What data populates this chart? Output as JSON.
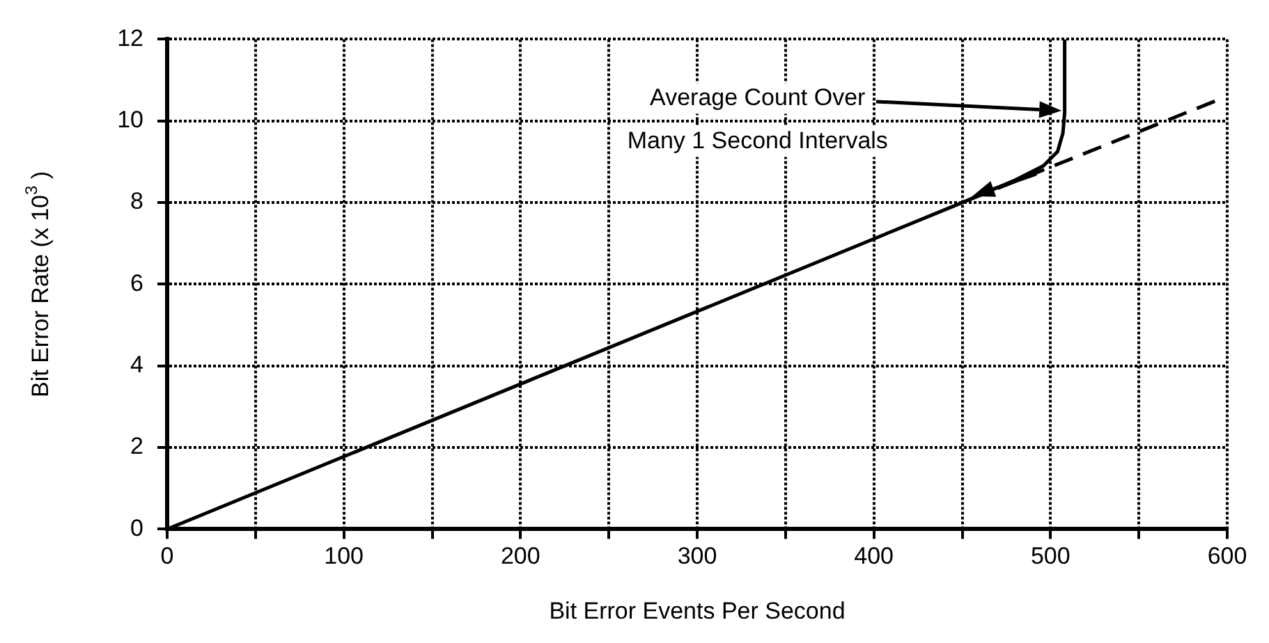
{
  "chart_data": {
    "type": "line",
    "xlabel": "Bit Error Events Per Second",
    "ylabel": "Bit Error Rate (x 10$^{3}$ )",
    "xlim": [
      0,
      600
    ],
    "ylim": [
      0,
      12
    ],
    "xticks": [
      0,
      {
        "value": 50,
        "label": null
      },
      100,
      {
        "value": 150,
        "label": null
      },
      200,
      {
        "value": 250,
        "label": null
      },
      300,
      {
        "value": 350,
        "label": null
      },
      400,
      {
        "value": 450,
        "label": null
      },
      500,
      {
        "value": 550,
        "label": null
      },
      600
    ],
    "yticks": [
      0,
      2,
      4,
      6,
      8,
      10,
      12
    ],
    "grid": true,
    "legend": false,
    "marker": "none",
    "series": [
      {
        "color": "#000000",
        "line_style": "solid",
        "x": [
          0,
          450,
          480,
          496,
          504,
          507,
          508,
          508
        ],
        "values": [
          0,
          8,
          8.55,
          8.9,
          9.25,
          9.7,
          10.2,
          12
        ]
      },
      {
        "color": "#000000",
        "line_style": "dashed",
        "x": [
          454,
          594
        ],
        "values": [
          8.07,
          10.5
        ]
      }
    ],
    "annotations": [
      "Average Count Over\nMany 1 Second Intervals"
    ]
  }
}
